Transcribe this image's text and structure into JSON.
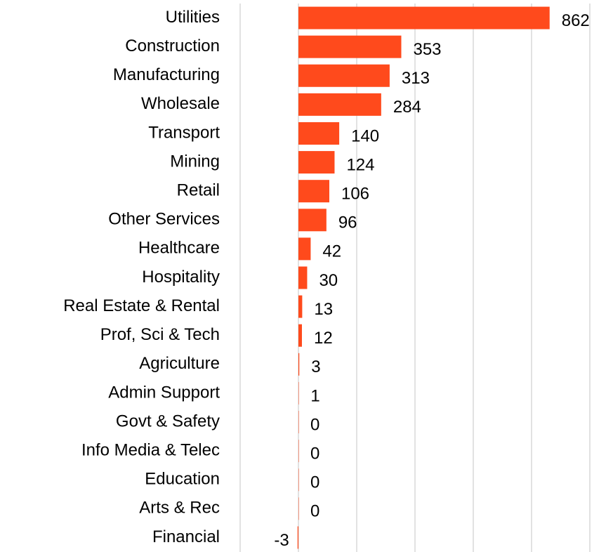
{
  "chart_data": {
    "type": "bar",
    "orientation": "horizontal",
    "categories": [
      "Utilities",
      "Construction",
      "Manufacturing",
      "Wholesale",
      "Transport",
      "Mining",
      "Retail",
      "Other Services",
      "Healthcare",
      "Hospitality",
      "Real Estate & Rental",
      "Prof, Sci & Tech",
      "Agriculture",
      "Admin Support",
      "Govt & Safety",
      "Info Media & Telec",
      "Education",
      "Arts & Rec",
      "Financial"
    ],
    "values": [
      862,
      353,
      313,
      284,
      140,
      124,
      106,
      96,
      42,
      30,
      13,
      12,
      3,
      1,
      0,
      0,
      0,
      0,
      -3
    ],
    "color": "#ff4a1c",
    "xlim": [
      -200,
      1000
    ],
    "xticks": [
      -200,
      0,
      200,
      400,
      600,
      800,
      1000
    ],
    "grid": true
  }
}
